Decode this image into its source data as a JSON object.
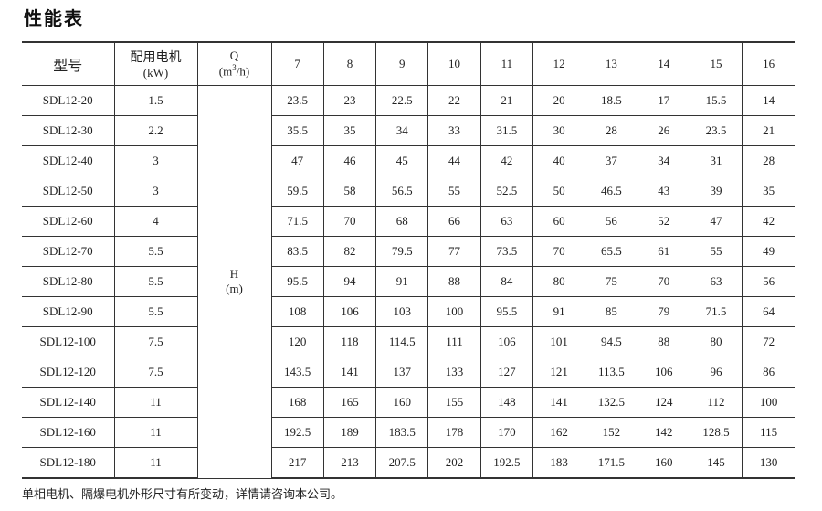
{
  "title": "性能表",
  "header": {
    "model": "型号",
    "motor_label": "配用电机",
    "motor_unit": "(kW)",
    "q_label": "Q",
    "q_unit_pre": "(m",
    "q_unit_sup": "3",
    "q_unit_post": "/h)",
    "h_label": "H",
    "h_unit": "(m)",
    "flows": [
      "7",
      "8",
      "9",
      "10",
      "11",
      "12",
      "13",
      "14",
      "15",
      "16"
    ]
  },
  "rows": [
    {
      "model": "SDL12-20",
      "kw": "1.5",
      "h": [
        "23.5",
        "23",
        "22.5",
        "22",
        "21",
        "20",
        "18.5",
        "17",
        "15.5",
        "14"
      ]
    },
    {
      "model": "SDL12-30",
      "kw": "2.2",
      "h": [
        "35.5",
        "35",
        "34",
        "33",
        "31.5",
        "30",
        "28",
        "26",
        "23.5",
        "21"
      ]
    },
    {
      "model": "SDL12-40",
      "kw": "3",
      "h": [
        "47",
        "46",
        "45",
        "44",
        "42",
        "40",
        "37",
        "34",
        "31",
        "28"
      ]
    },
    {
      "model": "SDL12-50",
      "kw": "3",
      "h": [
        "59.5",
        "58",
        "56.5",
        "55",
        "52.5",
        "50",
        "46.5",
        "43",
        "39",
        "35"
      ]
    },
    {
      "model": "SDL12-60",
      "kw": "4",
      "h": [
        "71.5",
        "70",
        "68",
        "66",
        "63",
        "60",
        "56",
        "52",
        "47",
        "42"
      ]
    },
    {
      "model": "SDL12-70",
      "kw": "5.5",
      "h": [
        "83.5",
        "82",
        "79.5",
        "77",
        "73.5",
        "70",
        "65.5",
        "61",
        "55",
        "49"
      ]
    },
    {
      "model": "SDL12-80",
      "kw": "5.5",
      "h": [
        "95.5",
        "94",
        "91",
        "88",
        "84",
        "80",
        "75",
        "70",
        "63",
        "56"
      ]
    },
    {
      "model": "SDL12-90",
      "kw": "5.5",
      "h": [
        "108",
        "106",
        "103",
        "100",
        "95.5",
        "91",
        "85",
        "79",
        "71.5",
        "64"
      ]
    },
    {
      "model": "SDL12-100",
      "kw": "7.5",
      "h": [
        "120",
        "118",
        "114.5",
        "111",
        "106",
        "101",
        "94.5",
        "88",
        "80",
        "72"
      ]
    },
    {
      "model": "SDL12-120",
      "kw": "7.5",
      "h": [
        "143.5",
        "141",
        "137",
        "133",
        "127",
        "121",
        "113.5",
        "106",
        "96",
        "86"
      ]
    },
    {
      "model": "SDL12-140",
      "kw": "11",
      "h": [
        "168",
        "165",
        "160",
        "155",
        "148",
        "141",
        "132.5",
        "124",
        "112",
        "100"
      ]
    },
    {
      "model": "SDL12-160",
      "kw": "11",
      "h": [
        "192.5",
        "189",
        "183.5",
        "178",
        "170",
        "162",
        "152",
        "142",
        "128.5",
        "115"
      ]
    },
    {
      "model": "SDL12-180",
      "kw": "11",
      "h": [
        "217",
        "213",
        "207.5",
        "202",
        "192.5",
        "183",
        "171.5",
        "160",
        "145",
        "130"
      ]
    }
  ],
  "note": "单相电机、隔爆电机外形尺寸有所变动，详情请咨询本公司。"
}
